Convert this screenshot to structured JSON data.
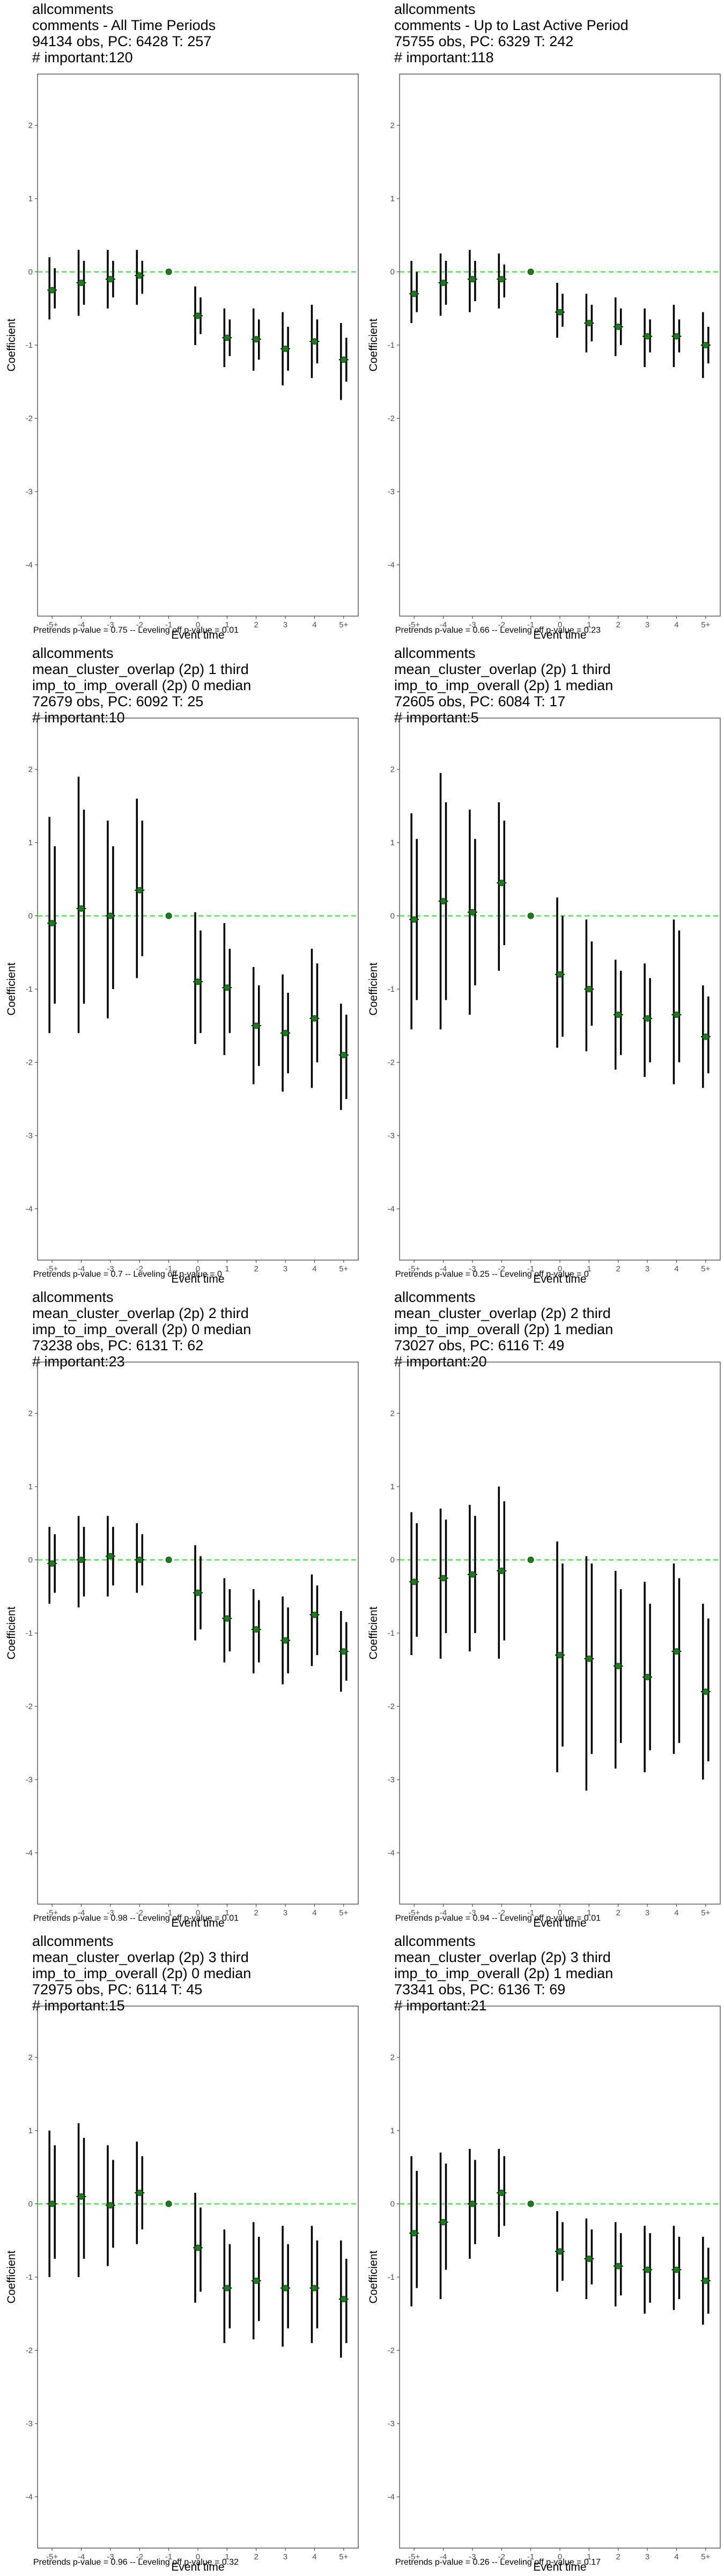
{
  "axis": {
    "xlabel": "Event time",
    "ylabel": "Coefficient"
  },
  "chart_data": [
    {
      "type": "scatter",
      "title_lines": [
        "allcomments",
        "comments - All Time Periods",
        "94134 obs, PC: 6428 T: 257",
        "# important:120"
      ],
      "footnote": "Pretrends p-value = 0.75 -- Leveling off p-value = 0.01",
      "x": [
        "-5+",
        "-4",
        "-3",
        "-2",
        "-1",
        "0",
        "1",
        "2",
        "3",
        "4",
        "5+"
      ],
      "y": [
        -0.25,
        -0.15,
        -0.1,
        -0.05,
        0,
        -0.6,
        -0.9,
        -0.92,
        -1.05,
        -0.95,
        -1.2
      ],
      "ci_inner": [
        [
          -0.5,
          0.05
        ],
        [
          -0.45,
          0.15
        ],
        [
          -0.35,
          0.15
        ],
        [
          -0.3,
          0.15
        ],
        [
          0,
          0
        ],
        [
          -0.85,
          -0.35
        ],
        [
          -1.15,
          -0.65
        ],
        [
          -1.2,
          -0.65
        ],
        [
          -1.35,
          -0.75
        ],
        [
          -1.25,
          -0.65
        ],
        [
          -1.5,
          -0.9
        ]
      ],
      "ci_outer": [
        [
          -0.65,
          0.2
        ],
        [
          -0.6,
          0.3
        ],
        [
          -0.5,
          0.3
        ],
        [
          -0.45,
          0.3
        ],
        [
          0,
          0
        ],
        [
          -1.0,
          -0.2
        ],
        [
          -1.3,
          -0.5
        ],
        [
          -1.35,
          -0.5
        ],
        [
          -1.55,
          -0.55
        ],
        [
          -1.45,
          -0.45
        ],
        [
          -1.75,
          -0.7
        ]
      ],
      "ylim": [
        -4.7,
        2.7
      ],
      "yticks": [
        -4,
        -3,
        -2,
        -1,
        0,
        1,
        2
      ],
      "reference_line": 0,
      "grid": false
    },
    {
      "type": "scatter",
      "title_lines": [
        "allcomments",
        "comments - Up to Last Active Period",
        "75755 obs, PC: 6329 T: 242",
        "# important:118"
      ],
      "footnote": "Pretrends p-value = 0.66 -- Leveling off p-value = 0.23",
      "x": [
        "-5+",
        "-4",
        "-3",
        "-2",
        "-1",
        "0",
        "1",
        "2",
        "3",
        "4",
        "5+"
      ],
      "y": [
        -0.3,
        -0.15,
        -0.1,
        -0.1,
        0,
        -0.55,
        -0.7,
        -0.75,
        -0.88,
        -0.88,
        -1.0
      ],
      "ci_inner": [
        [
          -0.55,
          0.0
        ],
        [
          -0.45,
          0.15
        ],
        [
          -0.4,
          0.15
        ],
        [
          -0.35,
          0.1
        ],
        [
          0,
          0
        ],
        [
          -0.75,
          -0.3
        ],
        [
          -0.95,
          -0.45
        ],
        [
          -1.0,
          -0.5
        ],
        [
          -1.1,
          -0.65
        ],
        [
          -1.1,
          -0.65
        ],
        [
          -1.25,
          -0.75
        ]
      ],
      "ci_outer": [
        [
          -0.7,
          0.15
        ],
        [
          -0.6,
          0.25
        ],
        [
          -0.55,
          0.3
        ],
        [
          -0.5,
          0.25
        ],
        [
          0,
          0
        ],
        [
          -0.9,
          -0.15
        ],
        [
          -1.1,
          -0.3
        ],
        [
          -1.15,
          -0.35
        ],
        [
          -1.3,
          -0.5
        ],
        [
          -1.3,
          -0.45
        ],
        [
          -1.45,
          -0.55
        ]
      ],
      "ylim": [
        -4.7,
        2.7
      ],
      "yticks": [
        -4,
        -3,
        -2,
        -1,
        0,
        1,
        2
      ],
      "reference_line": 0,
      "grid": false
    },
    {
      "type": "scatter",
      "title_lines": [
        "allcomments",
        "mean_cluster_overlap (2p) 1 third",
        "imp_to_imp_overall (2p) 0 median",
        "72679 obs, PC: 6092 T: 25",
        "# important:10"
      ],
      "footnote": "Pretrends p-value = 0.7 -- Leveling off p-value = 0",
      "x": [
        "-5+",
        "-4",
        "-3",
        "-2",
        "-1",
        "0",
        "1",
        "2",
        "3",
        "4",
        "5+"
      ],
      "y": [
        -0.1,
        0.1,
        0.0,
        0.35,
        0,
        -0.9,
        -0.98,
        -1.5,
        -1.6,
        -1.4,
        -1.9
      ],
      "ci_inner": [
        [
          -1.2,
          0.95
        ],
        [
          -1.2,
          1.45
        ],
        [
          -1.0,
          0.95
        ],
        [
          -0.55,
          1.3
        ],
        [
          0,
          0
        ],
        [
          -1.6,
          -0.2
        ],
        [
          -1.6,
          -0.45
        ],
        [
          -2.05,
          -0.95
        ],
        [
          -2.15,
          -1.05
        ],
        [
          -2.0,
          -0.65
        ],
        [
          -2.5,
          -1.35
        ]
      ],
      "ci_outer": [
        [
          -1.6,
          1.35
        ],
        [
          -1.6,
          1.9
        ],
        [
          -1.4,
          1.3
        ],
        [
          -0.85,
          1.6
        ],
        [
          0,
          0
        ],
        [
          -1.75,
          0.05
        ],
        [
          -1.9,
          -0.1
        ],
        [
          -2.3,
          -0.7
        ],
        [
          -2.4,
          -0.8
        ],
        [
          -2.35,
          -0.45
        ],
        [
          -2.65,
          -1.2
        ]
      ],
      "ylim": [
        -4.7,
        2.7
      ],
      "yticks": [
        -4,
        -3,
        -2,
        -1,
        0,
        1,
        2
      ],
      "reference_line": 0,
      "grid": false
    },
    {
      "type": "scatter",
      "title_lines": [
        "allcomments",
        "mean_cluster_overlap (2p) 1 third",
        "imp_to_imp_overall (2p) 1 median",
        "72605 obs, PC: 6084 T: 17",
        "# important:5"
      ],
      "footnote": "Pretrends p-value = 0.25 -- Leveling off p-value = 0",
      "x": [
        "-5+",
        "-4",
        "-3",
        "-2",
        "-1",
        "0",
        "1",
        "2",
        "3",
        "4",
        "5+"
      ],
      "y": [
        -0.05,
        0.2,
        0.05,
        0.45,
        0,
        -0.8,
        -1.0,
        -1.35,
        -1.4,
        -1.35,
        -1.65
      ],
      "ci_inner": [
        [
          -1.15,
          1.05
        ],
        [
          -1.15,
          1.55
        ],
        [
          -0.95,
          1.05
        ],
        [
          -0.4,
          1.3
        ],
        [
          0,
          0
        ],
        [
          -1.65,
          0.0
        ],
        [
          -1.5,
          -0.35
        ],
        [
          -1.9,
          -0.75
        ],
        [
          -2.0,
          -0.85
        ],
        [
          -2.0,
          -0.2
        ],
        [
          -2.15,
          -1.1
        ]
      ],
      "ci_outer": [
        [
          -1.55,
          1.4
        ],
        [
          -1.55,
          1.95
        ],
        [
          -1.35,
          1.45
        ],
        [
          -0.75,
          1.55
        ],
        [
          0,
          0
        ],
        [
          -1.8,
          0.25
        ],
        [
          -1.85,
          -0.05
        ],
        [
          -2.1,
          -0.6
        ],
        [
          -2.2,
          -0.65
        ],
        [
          -2.3,
          -0.05
        ],
        [
          -2.35,
          -0.95
        ]
      ],
      "ylim": [
        -4.7,
        2.7
      ],
      "yticks": [
        -4,
        -3,
        -2,
        -1,
        0,
        1,
        2
      ],
      "reference_line": 0,
      "grid": false
    },
    {
      "type": "scatter",
      "title_lines": [
        "allcomments",
        "mean_cluster_overlap (2p) 2 third",
        "imp_to_imp_overall (2p) 0 median",
        "73238 obs, PC: 6131 T: 62",
        "# important:23"
      ],
      "footnote": "Pretrends p-value = 0.98 -- Leveling off p-value = 0.01",
      "x": [
        "-5+",
        "-4",
        "-3",
        "-2",
        "-1",
        "0",
        "1",
        "2",
        "3",
        "4",
        "5+"
      ],
      "y": [
        -0.05,
        0.0,
        0.05,
        0.0,
        0,
        -0.45,
        -0.8,
        -0.95,
        -1.1,
        -0.75,
        -1.25
      ],
      "ci_inner": [
        [
          -0.45,
          0.35
        ],
        [
          -0.5,
          0.45
        ],
        [
          -0.35,
          0.45
        ],
        [
          -0.35,
          0.35
        ],
        [
          0,
          0
        ],
        [
          -0.95,
          0.05
        ],
        [
          -1.25,
          -0.4
        ],
        [
          -1.4,
          -0.55
        ],
        [
          -1.55,
          -0.65
        ],
        [
          -1.3,
          -0.35
        ],
        [
          -1.65,
          -0.85
        ]
      ],
      "ci_outer": [
        [
          -0.6,
          0.45
        ],
        [
          -0.65,
          0.6
        ],
        [
          -0.5,
          0.6
        ],
        [
          -0.45,
          0.5
        ],
        [
          0,
          0
        ],
        [
          -1.1,
          0.2
        ],
        [
          -1.4,
          -0.25
        ],
        [
          -1.55,
          -0.4
        ],
        [
          -1.7,
          -0.5
        ],
        [
          -1.45,
          -0.2
        ],
        [
          -1.8,
          -0.7
        ]
      ],
      "ylim": [
        -4.7,
        2.7
      ],
      "yticks": [
        -4,
        -3,
        -2,
        -1,
        0,
        1,
        2
      ],
      "reference_line": 0,
      "grid": false
    },
    {
      "type": "scatter",
      "title_lines": [
        "allcomments",
        "mean_cluster_overlap (2p) 2 third",
        "imp_to_imp_overall (2p) 1 median",
        "73027 obs, PC: 6116 T: 49",
        "# important:20"
      ],
      "footnote": "Pretrends p-value = 0.94 -- Leveling off p-value = 0.01",
      "x": [
        "-5+",
        "-4",
        "-3",
        "-2",
        "-1",
        "0",
        "1",
        "2",
        "3",
        "4",
        "5+"
      ],
      "y": [
        -0.3,
        -0.25,
        -0.2,
        -0.15,
        0,
        -1.3,
        -1.35,
        -1.45,
        -1.6,
        -1.25,
        -1.8
      ],
      "ci_inner": [
        [
          -1.05,
          0.5
        ],
        [
          -1.0,
          0.55
        ],
        [
          -1.0,
          0.6
        ],
        [
          -1.1,
          0.8
        ],
        [
          0,
          0
        ],
        [
          -2.55,
          -0.05
        ],
        [
          -2.65,
          -0.05
        ],
        [
          -2.5,
          -0.4
        ],
        [
          -2.6,
          -0.6
        ],
        [
          -2.5,
          -0.25
        ],
        [
          -2.75,
          -0.8
        ]
      ],
      "ci_outer": [
        [
          -1.3,
          0.65
        ],
        [
          -1.35,
          0.7
        ],
        [
          -1.25,
          0.75
        ],
        [
          -1.35,
          1.0
        ],
        [
          0,
          0
        ],
        [
          -2.9,
          0.25
        ],
        [
          -3.15,
          0.05
        ],
        [
          -2.85,
          -0.15
        ],
        [
          -2.9,
          -0.3
        ],
        [
          -2.65,
          -0.05
        ],
        [
          -3.0,
          -0.6
        ]
      ],
      "ylim": [
        -4.7,
        2.7
      ],
      "yticks": [
        -4,
        -3,
        -2,
        -1,
        0,
        1,
        2
      ],
      "reference_line": 0,
      "grid": false
    },
    {
      "type": "scatter",
      "title_lines": [
        "allcomments",
        "mean_cluster_overlap (2p) 3 third",
        "imp_to_imp_overall (2p) 0 median",
        "72975 obs, PC: 6114 T: 45",
        "# important:15"
      ],
      "footnote": "Pretrends p-value = 0.96 -- Leveling off p-value = 0.32",
      "x": [
        "-5+",
        "-4",
        "-3",
        "-2",
        "-1",
        "0",
        "1",
        "2",
        "3",
        "4",
        "5+"
      ],
      "y": [
        0.0,
        0.1,
        -0.02,
        0.15,
        0,
        -0.6,
        -1.15,
        -1.05,
        -1.15,
        -1.15,
        -1.3
      ],
      "ci_inner": [
        [
          -0.75,
          0.8
        ],
        [
          -0.75,
          0.9
        ],
        [
          -0.6,
          0.6
        ],
        [
          -0.35,
          0.65
        ],
        [
          0,
          0
        ],
        [
          -1.2,
          -0.05
        ],
        [
          -1.7,
          -0.55
        ],
        [
          -1.6,
          -0.45
        ],
        [
          -1.7,
          -0.55
        ],
        [
          -1.7,
          -0.5
        ],
        [
          -1.9,
          -0.75
        ]
      ],
      "ci_outer": [
        [
          -1.0,
          1.0
        ],
        [
          -1.0,
          1.1
        ],
        [
          -0.85,
          0.8
        ],
        [
          -0.55,
          0.85
        ],
        [
          0,
          0
        ],
        [
          -1.35,
          0.15
        ],
        [
          -1.9,
          -0.35
        ],
        [
          -1.85,
          -0.25
        ],
        [
          -1.95,
          -0.3
        ],
        [
          -1.9,
          -0.3
        ],
        [
          -2.1,
          -0.5
        ]
      ],
      "ylim": [
        -4.7,
        2.7
      ],
      "yticks": [
        -4,
        -3,
        -2,
        -1,
        0,
        1,
        2
      ],
      "reference_line": 0,
      "grid": false
    },
    {
      "type": "scatter",
      "title_lines": [
        "allcomments",
        "mean_cluster_overlap (2p) 3 third",
        "imp_to_imp_overall (2p) 1 median",
        "73341 obs, PC: 6136 T: 69",
        "# important:21"
      ],
      "footnote": "Pretrends p-value = 0.26 -- Leveling off p-value = 0.17",
      "x": [
        "-5+",
        "-4",
        "-3",
        "-2",
        "-1",
        "0",
        "1",
        "2",
        "3",
        "4",
        "5+"
      ],
      "y": [
        -0.4,
        -0.25,
        0.0,
        0.15,
        0,
        -0.65,
        -0.75,
        -0.85,
        -0.9,
        -0.9,
        -1.05
      ],
      "ci_inner": [
        [
          -1.15,
          0.45
        ],
        [
          -0.9,
          0.55
        ],
        [
          -0.55,
          0.6
        ],
        [
          -0.3,
          0.65
        ],
        [
          0,
          0
        ],
        [
          -1.05,
          -0.25
        ],
        [
          -1.1,
          -0.35
        ],
        [
          -1.25,
          -0.4
        ],
        [
          -1.35,
          -0.4
        ],
        [
          -1.3,
          -0.45
        ],
        [
          -1.5,
          -0.6
        ]
      ],
      "ci_outer": [
        [
          -1.4,
          0.65
        ],
        [
          -1.3,
          0.7
        ],
        [
          -0.75,
          0.75
        ],
        [
          -0.45,
          0.75
        ],
        [
          0,
          0
        ],
        [
          -1.2,
          -0.1
        ],
        [
          -1.3,
          -0.2
        ],
        [
          -1.4,
          -0.25
        ],
        [
          -1.5,
          -0.3
        ],
        [
          -1.45,
          -0.3
        ],
        [
          -1.65,
          -0.45
        ]
      ],
      "ylim": [
        -4.7,
        2.7
      ],
      "yticks": [
        -4,
        -3,
        -2,
        -1,
        0,
        1,
        2
      ],
      "reference_line": 0,
      "grid": false
    }
  ]
}
